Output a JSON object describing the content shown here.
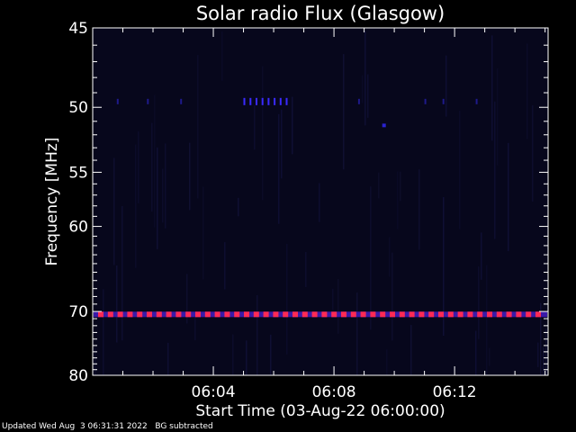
{
  "chart_data": {
    "type": "heatmap",
    "title": "Solar radio Flux (Glasgow)",
    "xlabel": "Start Time (03-Aug-22 06:00:00)",
    "ylabel": "Frequency [MHz]",
    "x_unit": "minutes after 06:00:00",
    "xlim": [
      0,
      15.1
    ],
    "ylim": [
      80,
      45
    ],
    "y_scale": "reciprocal",
    "x_ticks": [
      {
        "value": 4,
        "label": "06:04"
      },
      {
        "value": 8,
        "label": "06:08"
      },
      {
        "value": 12,
        "label": "06:12"
      }
    ],
    "y_ticks": [
      {
        "value": 45,
        "label": "45"
      },
      {
        "value": 50,
        "label": "50"
      },
      {
        "value": 55,
        "label": "55"
      },
      {
        "value": 60,
        "label": "60"
      },
      {
        "value": 70,
        "label": "70"
      },
      {
        "value": 80,
        "label": "80"
      }
    ],
    "features": [
      {
        "name": "persistent interference line",
        "frequency": 70.4,
        "color": "#ff2a55"
      },
      {
        "name": "intermittent emission",
        "frequency": 49.6,
        "x_range": [
          5,
          6.4
        ],
        "color": "#3a2aff"
      }
    ],
    "grid": false,
    "background_color": "#07071c",
    "band_color": "#ff2a55"
  },
  "footer": {
    "updated": "Updated Wed Aug  3 06:31:31 2022",
    "bg_note": "BG subtracted"
  }
}
